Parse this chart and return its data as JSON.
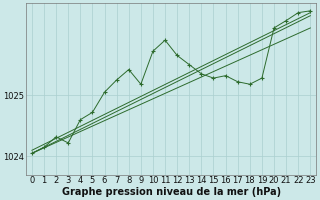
{
  "xlabel": "Graphe pression niveau de la mer (hPa)",
  "bg_color": "#cce8e8",
  "plot_bg_color": "#cce8e8",
  "grid_color": "#aacfcf",
  "line_color": "#2d6b2d",
  "xlim": [
    -0.5,
    23.5
  ],
  "ylim": [
    1023.7,
    1026.5
  ],
  "yticks": [
    1024,
    1025
  ],
  "xticks": [
    0,
    1,
    2,
    3,
    4,
    5,
    6,
    7,
    8,
    9,
    10,
    11,
    12,
    13,
    14,
    15,
    16,
    17,
    18,
    19,
    20,
    21,
    22,
    23
  ],
  "trend1_x": [
    0,
    23
  ],
  "trend1_y": [
    1024.05,
    1026.3
  ],
  "trend2_x": [
    0,
    23
  ],
  "trend2_y": [
    1024.05,
    1026.1
  ],
  "trend3_x": [
    0,
    23
  ],
  "trend3_y": [
    1024.1,
    1026.35
  ],
  "main_line_x": [
    0,
    1,
    2,
    3,
    4,
    5,
    6,
    7,
    8,
    9,
    10,
    11,
    12,
    13,
    14,
    15,
    16,
    17,
    18,
    19,
    20,
    21,
    22,
    23
  ],
  "main_line_y": [
    1024.05,
    1024.15,
    1024.32,
    1024.22,
    1024.6,
    1024.72,
    1025.05,
    1025.25,
    1025.42,
    1025.18,
    1025.72,
    1025.9,
    1025.65,
    1025.5,
    1025.35,
    1025.28,
    1025.32,
    1025.22,
    1025.18,
    1025.28,
    1026.1,
    1026.22,
    1026.35,
    1026.38
  ],
  "label_fontsize": 7,
  "tick_fontsize": 6
}
